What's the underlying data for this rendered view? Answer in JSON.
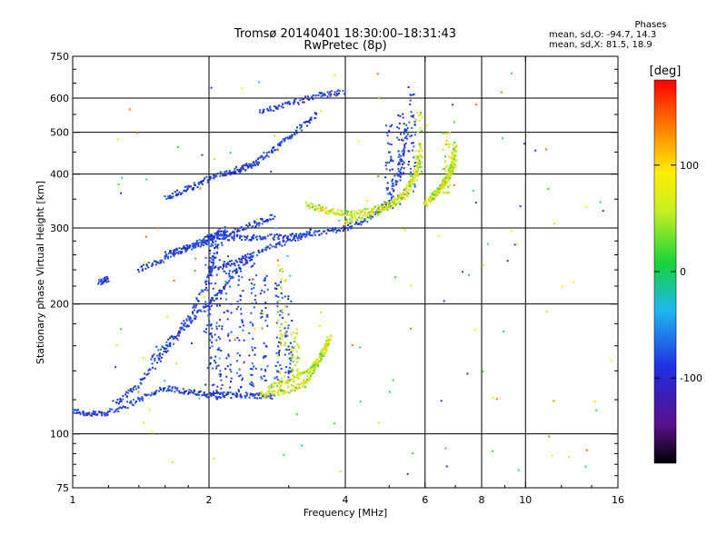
{
  "chart_data": {
    "type": "scatter",
    "title": "Tromsø 20140401 18:30:00–18:31:43",
    "subtitle": "RwPretec (8p)",
    "xlabel": "Frequency [MHz]",
    "ylabel": "Stationary phase Virtual Height [km]",
    "x_scale": "log",
    "y_scale": "log",
    "xlim": [
      1,
      16
    ],
    "ylim": [
      75,
      750
    ],
    "x_ticks": [
      1,
      2,
      4,
      6,
      8,
      10,
      16
    ],
    "x_tick_labels": [
      "1",
      "2",
      "4",
      "6",
      "8",
      "10",
      "16"
    ],
    "y_ticks": [
      75,
      100,
      200,
      300,
      400,
      500,
      600,
      750
    ],
    "y_tick_labels": [
      "75",
      "100",
      "200",
      "300",
      "400",
      "500",
      "600",
      "750"
    ],
    "x_grid_lines": [
      2,
      4,
      6,
      8,
      10
    ],
    "y_grid_lines": [
      100,
      200,
      300,
      400,
      500,
      600
    ],
    "grid": true,
    "colorbar": {
      "label": "[deg]",
      "range": [
        -180,
        180
      ],
      "ticks": [
        -100,
        0,
        100
      ],
      "tick_labels": [
        "-100",
        "0",
        "100"
      ],
      "colormap": "rainbow (black → violet → blue → cyan → green → yellow → orange → red)"
    },
    "legend": {
      "header": "Phases",
      "line1": "mean, sd,O: -94.7, 14.3",
      "line2": "mean, sd,X:  81.5, 18.9"
    },
    "series": [
      {
        "name": "O",
        "color": "#1a3fd6",
        "traces": [
          {
            "f": [
              1.0,
              1.1,
              1.2,
              1.4,
              1.6,
              1.8,
              2.0,
              2.2,
              2.5,
              2.8
            ],
            "h": [
              113,
              111,
              112,
              120,
              128,
              125,
              123,
              123,
              123,
              122
            ]
          },
          {
            "f": [
              1.25,
              1.4,
              1.6,
              1.8,
              2.0,
              2.1
            ],
            "h": [
              118,
              130,
              155,
              185,
              230,
              280
            ]
          },
          {
            "f": [
              1.5,
              1.7,
              1.9,
              2.1,
              2.3,
              2.5
            ],
            "h": [
              150,
              170,
              190,
              210,
              240,
              260
            ]
          },
          {
            "f": [
              2.0,
              2.3,
              2.6,
              3.0,
              3.5,
              4.0,
              4.5,
              5.0,
              5.3,
              5.5
            ],
            "h": [
              287,
              285,
              285,
              287,
              292,
              300,
              315,
              345,
              420,
              520
            ]
          },
          {
            "f": [
              2.0,
              2.3,
              2.6,
              3.0,
              3.4
            ],
            "h": [
              240,
              250,
              265,
              280,
              295
            ]
          },
          {
            "f": [
              1.6,
              1.8,
              2.0,
              2.2,
              2.5,
              2.8
            ],
            "h": [
              260,
              270,
              280,
              290,
              305,
              320
            ]
          },
          {
            "f": [
              1.4,
              1.6,
              1.8,
              2.0,
              2.2
            ],
            "h": [
              240,
              255,
              270,
              285,
              300
            ]
          },
          {
            "f": [
              1.6,
              1.8,
              2.0,
              2.3,
              2.6
            ],
            "h": [
              350,
              370,
              390,
              410,
              430
            ]
          },
          {
            "f": [
              2.2,
              2.5,
              2.8,
              3.1,
              3.5
            ],
            "h": [
              400,
              420,
              460,
              500,
              560
            ]
          },
          {
            "f": [
              2.6,
              3.0,
              3.5,
              4.0
            ],
            "h": [
              560,
              580,
              610,
              620
            ]
          },
          {
            "f": [
              1.15,
              1.2
            ],
            "h": [
              225,
              228
            ]
          }
        ],
        "columns": [
          {
            "f": 2.0,
            "h0": 120,
            "h1": 300
          },
          {
            "f": 2.05,
            "h0": 120,
            "h1": 290
          },
          {
            "f": 2.1,
            "h0": 122,
            "h1": 280
          },
          {
            "f": 2.2,
            "h0": 123,
            "h1": 270
          },
          {
            "f": 2.35,
            "h0": 125,
            "h1": 260
          },
          {
            "f": 2.5,
            "h0": 128,
            "h1": 250
          },
          {
            "f": 2.65,
            "h0": 130,
            "h1": 235
          },
          {
            "f": 2.85,
            "h0": 132,
            "h1": 225
          },
          {
            "f": 3.0,
            "h0": 135,
            "h1": 210
          },
          {
            "f": 5.0,
            "h0": 330,
            "h1": 520
          },
          {
            "f": 5.3,
            "h0": 340,
            "h1": 560
          },
          {
            "f": 5.6,
            "h0": 360,
            "h1": 640
          }
        ]
      },
      {
        "name": "X",
        "color": "#d8e21c",
        "traces": [
          {
            "f": [
              2.6,
              2.9,
              3.2,
              3.4,
              3.6,
              3.7
            ],
            "h": [
              123,
              125,
              130,
              140,
              155,
              170
            ]
          },
          {
            "f": [
              2.7,
              3.0,
              3.3,
              3.5,
              3.7
            ],
            "h": [
              128,
              132,
              140,
              150,
              165
            ]
          },
          {
            "f": [
              3.3,
              3.6,
              3.9,
              4.2,
              4.6,
              5.0,
              5.4,
              5.7,
              5.9
            ],
            "h": [
              340,
              330,
              325,
              325,
              330,
              340,
              360,
              400,
              460
            ]
          },
          {
            "f": [
              4.0,
              4.5,
              5.0,
              5.5,
              5.8
            ],
            "h": [
              310,
              320,
              335,
              360,
              420
            ]
          },
          {
            "f": [
              6.0,
              6.3,
              6.6,
              6.8,
              6.9,
              7.0
            ],
            "h": [
              340,
              360,
              380,
              400,
              430,
              470
            ]
          },
          {
            "f": [
              6.2,
              6.5,
              6.8,
              7.0
            ],
            "h": [
              350,
              370,
              400,
              430
            ]
          }
        ],
        "columns": [
          {
            "f": 2.9,
            "h0": 130,
            "h1": 250
          },
          {
            "f": 3.1,
            "h0": 135,
            "h1": 175
          },
          {
            "f": 5.8,
            "h0": 380,
            "h1": 560
          },
          {
            "f": 6.7,
            "h0": 360,
            "h1": 500
          }
        ]
      }
    ]
  }
}
